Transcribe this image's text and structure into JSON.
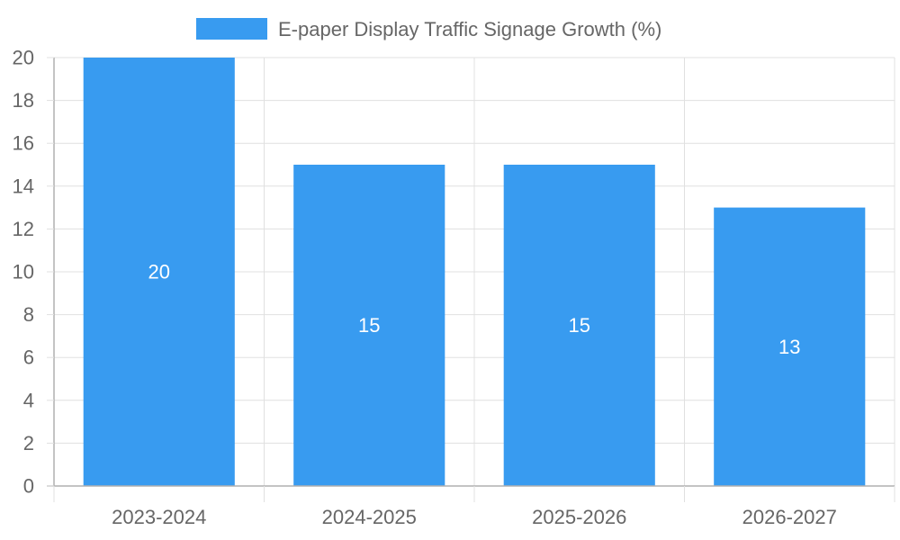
{
  "chart_data": {
    "type": "bar",
    "categories": [
      "2023-2024",
      "2024-2025",
      "2025-2026",
      "2026-2027"
    ],
    "series": [
      {
        "name": "E-paper Display Traffic Signage Growth (%)",
        "values": [
          20,
          15,
          15,
          13
        ],
        "color": "#389bf0"
      }
    ],
    "ylim": [
      0,
      20
    ],
    "yticks": [
      0,
      2,
      4,
      6,
      8,
      10,
      12,
      14,
      16,
      18,
      20
    ],
    "grid": true,
    "legend_position": "top-center",
    "data_labels": true
  },
  "colors": {
    "grid": "#e0e0e0",
    "axis": "#b0b0b0",
    "text": "#666666",
    "data_label": "#ffffff"
  }
}
